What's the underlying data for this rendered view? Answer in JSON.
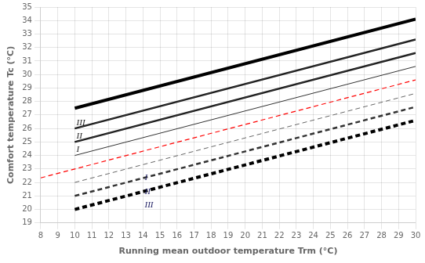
{
  "chart_data": {
    "type": "line",
    "xlabel": "Running mean outdoor temperature Trm (°C)",
    "ylabel": "Comfort temperature Tc (°C)",
    "xlim": [
      8,
      30
    ],
    "xticks": [
      8,
      9,
      10,
      11,
      12,
      13,
      14,
      15,
      16,
      17,
      18,
      19,
      20,
      21,
      22,
      23,
      24,
      25,
      26,
      27,
      28,
      29,
      30
    ],
    "ylim": [
      19,
      35
    ],
    "yticks": [
      19,
      20,
      21,
      22,
      23,
      24,
      25,
      26,
      27,
      28,
      29,
      30,
      31,
      32,
      33,
      34,
      35
    ],
    "grid": true,
    "series": [
      {
        "color": "#333333",
        "line_style": "solid",
        "x": [
          10,
          30
        ],
        "values": [
          24.0,
          30.6
        ]
      },
      {
        "color": "#333333",
        "line_style": "solid",
        "x": [
          10,
          30
        ],
        "values": [
          25.0,
          31.6
        ]
      },
      {
        "color": "#333333",
        "line_style": "solid",
        "x": [
          10,
          30
        ],
        "values": [
          26.0,
          32.6
        ]
      },
      {
        "color": "#111111",
        "line_style": "solid",
        "x": [
          10,
          30
        ],
        "values": [
          25.0,
          31.6
        ]
      },
      {
        "color": "#111111",
        "line_style": "solid",
        "x": [
          10,
          30
        ],
        "values": [
          26.0,
          32.6
        ]
      },
      {
        "color": "#000000",
        "line_style": "solid",
        "x": [
          10,
          30
        ],
        "values": [
          27.5,
          34.1
        ]
      },
      {
        "color": "#ff0000",
        "line_style": "dashed",
        "x": [
          8,
          30
        ],
        "values": [
          22.34,
          29.6
        ]
      },
      {
        "color": "#666666",
        "line_style": "dashed",
        "x": [
          10,
          30
        ],
        "values": [
          22.0,
          28.6
        ]
      },
      {
        "color": "#333333",
        "line_style": "dashed",
        "x": [
          10,
          30
        ],
        "values": [
          21.0,
          27.6
        ]
      },
      {
        "color": "#000000",
        "line_style": "dashed",
        "x": [
          10,
          30
        ],
        "values": [
          20.0,
          26.6
        ]
      }
    ],
    "annotations": [
      {
        "text": "I",
        "x": 10.1,
        "y": 24.1,
        "color": "#222222"
      },
      {
        "text": "II",
        "x": 10.1,
        "y": 25.1,
        "color": "#222222"
      },
      {
        "text": "III",
        "x": 10.1,
        "y": 26.1,
        "color": "#222222"
      },
      {
        "text": "I",
        "x": 14.1,
        "y": 22.0,
        "color": "#222266"
      },
      {
        "text": "II",
        "x": 14.1,
        "y": 21.0,
        "color": "#222266"
      },
      {
        "text": "III",
        "x": 14.1,
        "y": 20.0,
        "color": "#222266"
      }
    ]
  }
}
